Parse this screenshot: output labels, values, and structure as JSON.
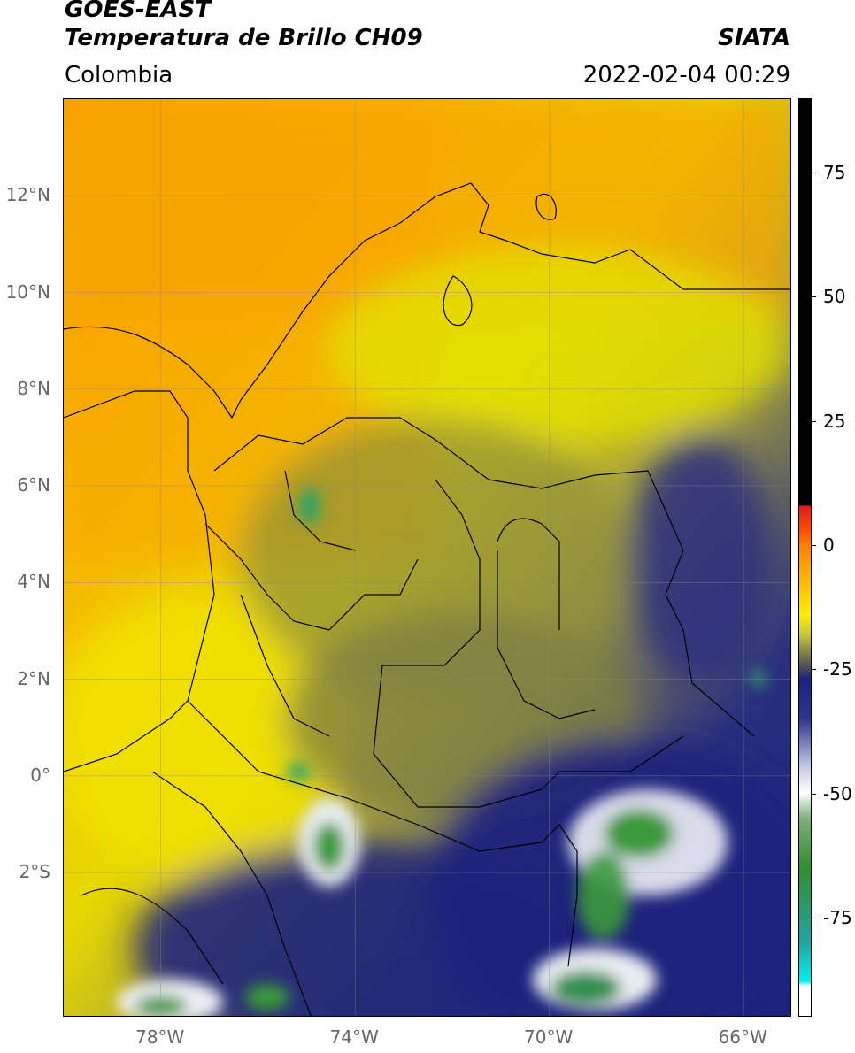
{
  "header": {
    "satellite": "GOES-EAST",
    "product": "Temperatura de Brillo CH09",
    "organization": "SIATA",
    "region": "Colombia",
    "datetime": "2022-02-04 00:29"
  },
  "map": {
    "lat_labels": [
      "12°N",
      "10°N",
      "8°N",
      "6°N",
      "4°N",
      "2°N",
      "0°",
      "2°S"
    ],
    "lon_labels": [
      "78°W",
      "74°W",
      "70°W",
      "66°W"
    ],
    "lat_values": [
      12,
      10,
      8,
      6,
      4,
      2,
      0,
      -2
    ],
    "lon_values": [
      -78,
      -74,
      -70,
      -66
    ],
    "extent": {
      "lon_min": -80,
      "lon_max": -65,
      "lat_min": -5,
      "lat_max": 14
    },
    "colors": {
      "warm_orange": "#f7a400",
      "yellow": "#f5e300",
      "olive": "#8f8f3a",
      "navy": "#1c237c",
      "white": "#f2f2f7",
      "green": "#3a9a3a"
    }
  },
  "colorbar": {
    "ticks": [
      "75",
      "50",
      "25",
      "0",
      "-25",
      "-50",
      "-75"
    ],
    "tick_values": [
      75,
      50,
      25,
      0,
      -25,
      -50,
      -75
    ],
    "range": [
      -95,
      90
    ]
  }
}
